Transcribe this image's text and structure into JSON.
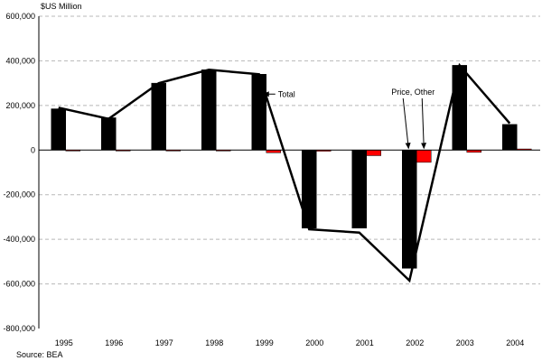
{
  "chart_data": {
    "type": "bar",
    "ylabel": "$US Million",
    "source": "Source:  BEA",
    "categories": [
      "1995",
      "1996",
      "1997",
      "1998",
      "1999",
      "2000",
      "2001",
      "2002",
      "2003",
      "2004"
    ],
    "ylim": [
      -800000,
      600000
    ],
    "yticks": [
      600000,
      400000,
      200000,
      0,
      -200000,
      -400000,
      -600000,
      -800000
    ],
    "ytick_labels": [
      "600,000",
      "400,000",
      "200,000",
      "0",
      "-200,000",
      "-400,000",
      "-600,000",
      "-800,000"
    ],
    "grid": true,
    "series": [
      {
        "name": "",
        "type": "bar",
        "color": "#000000",
        "values": [
          185000,
          145000,
          300000,
          360000,
          340000,
          -350000,
          -350000,
          -530000,
          380000,
          115000
        ]
      },
      {
        "name": "Price, Other",
        "type": "bar",
        "color": "#ff0000",
        "values": [
          -2000,
          -2000,
          -2000,
          -3000,
          -12000,
          -5000,
          -25000,
          -55000,
          -10000,
          5000
        ]
      },
      {
        "name": "Total",
        "type": "line",
        "color": "#000000",
        "values": [
          190000,
          140000,
          300000,
          360000,
          340000,
          -355000,
          -370000,
          -585000,
          380000,
          120000
        ]
      }
    ],
    "annotations": [
      {
        "text": "Total",
        "series": 2
      },
      {
        "text": "Price, Other",
        "series": 1
      }
    ]
  }
}
